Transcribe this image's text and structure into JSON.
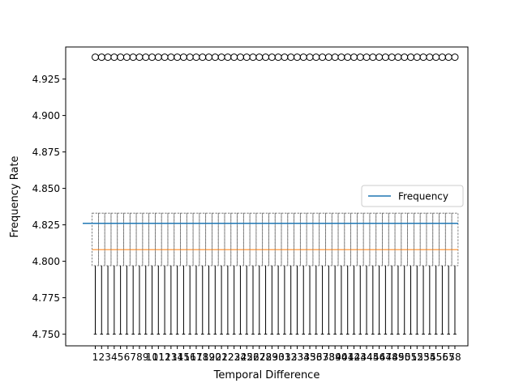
{
  "chart_data": {
    "type": "boxplot",
    "title": "",
    "xlabel": "Temporal Difference",
    "ylabel": "Frequency Rate",
    "ylim": [
      4.742,
      4.947
    ],
    "yticks": [
      4.75,
      4.775,
      4.8,
      4.825,
      4.85,
      4.875,
      4.9,
      4.925
    ],
    "ytick_labels": [
      "4.750",
      "4.775",
      "4.800",
      "4.825",
      "4.850",
      "4.875",
      "4.900",
      "4.925"
    ],
    "categories": [
      "1",
      "2",
      "3",
      "4",
      "5",
      "6",
      "7",
      "8",
      "9",
      "10",
      "11",
      "12",
      "13",
      "14",
      "15",
      "16",
      "17",
      "18",
      "19",
      "20",
      "21",
      "22",
      "23",
      "24",
      "25",
      "26",
      "27",
      "28",
      "29",
      "30",
      "31",
      "32",
      "33",
      "34",
      "35",
      "36",
      "37",
      "38",
      "39",
      "40",
      "41",
      "42",
      "43",
      "44",
      "45",
      "46",
      "47",
      "48",
      "49",
      "50",
      "51",
      "52",
      "53",
      "54",
      "55",
      "56",
      "57",
      "58"
    ],
    "box_stats": {
      "whisker_low": 4.75,
      "q1": 4.797,
      "median": 4.808,
      "q3": 4.833,
      "whisker_high": 4.833,
      "outlier": 4.94
    },
    "line_series": [
      {
        "name": "Frequency",
        "value": 4.826,
        "color": "#1f77b4"
      }
    ],
    "legend": {
      "position": "center-right",
      "entries": [
        "Frequency"
      ]
    },
    "colors": {
      "median": "#ff7f0e",
      "box": "#666666",
      "whisker": "#000000",
      "line": "#1f77b4"
    },
    "grid": false
  }
}
